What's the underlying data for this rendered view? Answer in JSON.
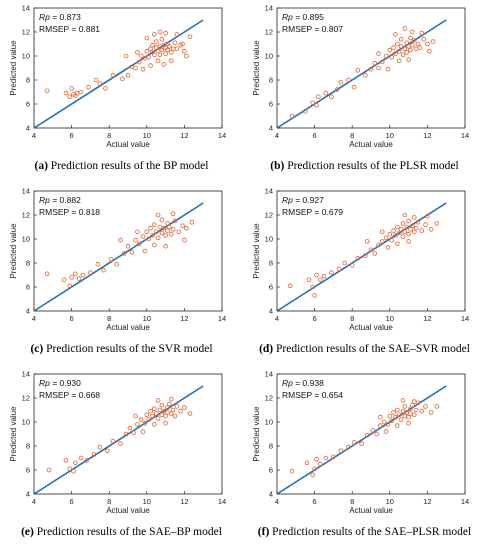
{
  "figure": {
    "panels": [
      {
        "label": "(a)",
        "caption": "Prediction results of the BP model"
      },
      {
        "label": "(b)",
        "caption": "Prediction results of the PLSR model"
      },
      {
        "label": "(c)",
        "caption": "Prediction results of the SVR model"
      },
      {
        "label": "(d)",
        "caption": "Prediction results of the SAE–SVR model"
      },
      {
        "label": "(e)",
        "caption": "Prediction results of the SAE–BP model"
      },
      {
        "label": "(f)",
        "caption": "Prediction results of the SAE–PLSR model"
      }
    ]
  },
  "colors": {
    "points": "#e8622a",
    "line": "#1f6fb5",
    "axis": "#222222"
  },
  "chart_data": [
    {
      "type": "scatter",
      "xlabel": "Actual value",
      "ylabel": "Predicted value",
      "xlim": [
        4,
        14
      ],
      "ylim": [
        4,
        14
      ],
      "xticks": [
        4,
        6,
        8,
        10,
        12,
        14
      ],
      "yticks": [
        4,
        6,
        8,
        10,
        12,
        14
      ],
      "stats": {
        "rp_label": "Rp",
        "rp_value": "= 0.873",
        "rmsep_text": "RMSEP = 0.881"
      },
      "fit_line": [
        [
          4,
          4
        ],
        [
          13,
          13
        ]
      ],
      "points": [
        [
          4.7,
          7.1
        ],
        [
          5.7,
          6.9
        ],
        [
          5.9,
          6.6
        ],
        [
          6.0,
          7.3
        ],
        [
          6.1,
          6.8
        ],
        [
          6.2,
          6.7
        ],
        [
          6.3,
          6.9
        ],
        [
          6.5,
          7.0
        ],
        [
          6.9,
          7.4
        ],
        [
          7.3,
          8.0
        ],
        [
          7.5,
          7.7
        ],
        [
          7.8,
          7.3
        ],
        [
          8.2,
          8.4
        ],
        [
          8.7,
          8.1
        ],
        [
          9.0,
          8.4
        ],
        [
          9.2,
          9.1
        ],
        [
          9.4,
          9.0
        ],
        [
          9.6,
          9.5
        ],
        [
          9.7,
          10.0
        ],
        [
          9.9,
          9.8
        ],
        [
          10.0,
          10.4
        ],
        [
          10.1,
          9.9
        ],
        [
          10.2,
          10.6
        ],
        [
          10.3,
          10.3
        ],
        [
          10.3,
          10.9
        ],
        [
          10.4,
          10.1
        ],
        [
          10.5,
          10.7
        ],
        [
          10.5,
          11.2
        ],
        [
          10.6,
          10.4
        ],
        [
          10.7,
          10.8
        ],
        [
          10.7,
          10.1
        ],
        [
          10.8,
          10.5
        ],
        [
          10.8,
          11.4
        ],
        [
          10.9,
          10.9
        ],
        [
          11.0,
          10.2
        ],
        [
          11.0,
          10.7
        ],
        [
          11.1,
          11.0
        ],
        [
          11.1,
          10.5
        ],
        [
          11.2,
          10.8
        ],
        [
          11.3,
          10.3
        ],
        [
          11.4,
          10.6
        ],
        [
          11.5,
          11.1
        ],
        [
          11.6,
          10.6
        ],
        [
          11.8,
          10.9
        ],
        [
          12.0,
          10.4
        ],
        [
          12.3,
          11.6
        ],
        [
          10.2,
          9.2
        ],
        [
          10.6,
          9.6
        ],
        [
          11.3,
          9.6
        ],
        [
          10.9,
          9.3
        ],
        [
          9.8,
          8.9
        ],
        [
          10.4,
          11.8
        ],
        [
          11.0,
          11.9
        ],
        [
          11.6,
          11.8
        ],
        [
          10.0,
          11.5
        ],
        [
          9.5,
          10.3
        ],
        [
          8.9,
          10.0
        ],
        [
          11.9,
          11.0
        ],
        [
          12.1,
          10.0
        ],
        [
          10.7,
          12.0
        ]
      ]
    },
    {
      "type": "scatter",
      "xlabel": "Actual value",
      "ylabel": "Predicted value",
      "xlim": [
        4,
        14
      ],
      "ylim": [
        4,
        14
      ],
      "xticks": [
        4,
        6,
        8,
        10,
        12,
        14
      ],
      "yticks": [
        4,
        6,
        8,
        10,
        12,
        14
      ],
      "stats": {
        "rp_label": "Rp",
        "rp_value": "= 0.895",
        "rmsep_text": "RMSEP = 0.807"
      },
      "fit_line": [
        [
          4,
          4
        ],
        [
          13,
          13
        ]
      ],
      "points": [
        [
          4.8,
          5.0
        ],
        [
          5.5,
          5.4
        ],
        [
          5.9,
          6.1
        ],
        [
          6.1,
          5.9
        ],
        [
          6.2,
          6.6
        ],
        [
          6.6,
          6.9
        ],
        [
          6.9,
          6.6
        ],
        [
          7.2,
          7.2
        ],
        [
          7.4,
          7.8
        ],
        [
          7.8,
          8.0
        ],
        [
          8.1,
          7.4
        ],
        [
          8.3,
          8.8
        ],
        [
          8.7,
          8.4
        ],
        [
          9.0,
          8.9
        ],
        [
          9.2,
          9.4
        ],
        [
          9.4,
          9.0
        ],
        [
          9.6,
          9.5
        ],
        [
          9.8,
          10.0
        ],
        [
          10.0,
          10.5
        ],
        [
          10.1,
          9.9
        ],
        [
          10.2,
          10.7
        ],
        [
          10.3,
          10.2
        ],
        [
          10.4,
          11.0
        ],
        [
          10.5,
          10.4
        ],
        [
          10.6,
          10.8
        ],
        [
          10.6,
          11.4
        ],
        [
          10.7,
          10.1
        ],
        [
          10.8,
          10.6
        ],
        [
          10.9,
          11.1
        ],
        [
          10.9,
          10.3
        ],
        [
          11.0,
          10.8
        ],
        [
          11.1,
          11.5
        ],
        [
          11.1,
          10.5
        ],
        [
          11.2,
          10.9
        ],
        [
          11.3,
          11.3
        ],
        [
          11.4,
          10.6
        ],
        [
          11.5,
          11.0
        ],
        [
          11.6,
          10.7
        ],
        [
          11.8,
          11.4
        ],
        [
          12.0,
          11.0
        ],
        [
          12.3,
          11.2
        ],
        [
          10.5,
          9.6
        ],
        [
          11.0,
          9.7
        ],
        [
          9.9,
          8.9
        ],
        [
          10.3,
          11.8
        ],
        [
          11.2,
          12.0
        ],
        [
          10.8,
          12.3
        ],
        [
          9.4,
          10.2
        ],
        [
          11.7,
          11.9
        ],
        [
          12.1,
          10.4
        ]
      ]
    },
    {
      "type": "scatter",
      "xlabel": "Actual value",
      "ylabel": "Predicted value",
      "xlim": [
        4,
        14
      ],
      "ylim": [
        4,
        14
      ],
      "xticks": [
        4,
        6,
        8,
        10,
        12,
        14
      ],
      "yticks": [
        4,
        6,
        8,
        10,
        12,
        14
      ],
      "stats": {
        "rp_label": "Rp",
        "rp_value": "= 0.882",
        "rmsep_text": "RMSEP = 0.818"
      },
      "fit_line": [
        [
          4,
          4
        ],
        [
          13,
          13
        ]
      ],
      "points": [
        [
          4.7,
          7.1
        ],
        [
          5.6,
          6.6
        ],
        [
          5.9,
          6.1
        ],
        [
          6.0,
          6.8
        ],
        [
          6.2,
          7.1
        ],
        [
          6.4,
          6.7
        ],
        [
          6.6,
          7.0
        ],
        [
          7.0,
          7.2
        ],
        [
          7.4,
          7.9
        ],
        [
          7.7,
          7.4
        ],
        [
          8.1,
          8.3
        ],
        [
          8.4,
          7.9
        ],
        [
          8.8,
          8.8
        ],
        [
          9.0,
          9.4
        ],
        [
          9.2,
          8.9
        ],
        [
          9.4,
          9.9
        ],
        [
          9.6,
          9.6
        ],
        [
          9.8,
          10.2
        ],
        [
          10.0,
          10.6
        ],
        [
          10.1,
          10.0
        ],
        [
          10.2,
          10.9
        ],
        [
          10.3,
          10.3
        ],
        [
          10.4,
          11.2
        ],
        [
          10.5,
          10.6
        ],
        [
          10.6,
          10.1
        ],
        [
          10.7,
          11.0
        ],
        [
          10.8,
          10.5
        ],
        [
          10.8,
          11.6
        ],
        [
          10.9,
          10.9
        ],
        [
          11.0,
          10.3
        ],
        [
          11.1,
          11.3
        ],
        [
          11.1,
          10.7
        ],
        [
          11.2,
          11.0
        ],
        [
          11.3,
          10.4
        ],
        [
          11.4,
          10.8
        ],
        [
          11.5,
          11.5
        ],
        [
          11.7,
          10.6
        ],
        [
          11.9,
          11.1
        ],
        [
          12.1,
          10.9
        ],
        [
          12.4,
          11.4
        ],
        [
          10.4,
          9.5
        ],
        [
          11.0,
          9.4
        ],
        [
          9.9,
          9.0
        ],
        [
          10.6,
          12.0
        ],
        [
          11.4,
          12.1
        ],
        [
          9.5,
          10.6
        ],
        [
          8.6,
          9.9
        ],
        [
          12.0,
          9.9
        ]
      ]
    },
    {
      "type": "scatter",
      "xlabel": "Actual value",
      "ylabel": "Predicted value",
      "xlim": [
        4,
        14
      ],
      "ylim": [
        4,
        14
      ],
      "xticks": [
        4,
        6,
        8,
        10,
        12,
        14
      ],
      "yticks": [
        4,
        6,
        8,
        10,
        12,
        14
      ],
      "stats": {
        "rp_label": "Rp",
        "rp_value": "= 0.927",
        "rmsep_text": "RMSEP = 0.679"
      },
      "fit_line": [
        [
          4,
          4
        ],
        [
          13,
          13
        ]
      ],
      "points": [
        [
          4.7,
          6.1
        ],
        [
          5.7,
          6.6
        ],
        [
          5.9,
          6.0
        ],
        [
          6.0,
          5.3
        ],
        [
          6.1,
          7.0
        ],
        [
          6.3,
          6.6
        ],
        [
          6.5,
          6.9
        ],
        [
          6.9,
          7.2
        ],
        [
          7.3,
          7.5
        ],
        [
          7.6,
          8.0
        ],
        [
          8.0,
          7.8
        ],
        [
          8.3,
          8.4
        ],
        [
          8.7,
          8.6
        ],
        [
          9.0,
          9.1
        ],
        [
          9.2,
          8.8
        ],
        [
          9.4,
          9.5
        ],
        [
          9.6,
          9.8
        ],
        [
          9.8,
          10.1
        ],
        [
          10.0,
          10.4
        ],
        [
          10.1,
          9.9
        ],
        [
          10.2,
          10.7
        ],
        [
          10.3,
          10.3
        ],
        [
          10.4,
          11.0
        ],
        [
          10.5,
          10.5
        ],
        [
          10.6,
          10.8
        ],
        [
          10.7,
          11.3
        ],
        [
          10.7,
          10.2
        ],
        [
          10.8,
          10.6
        ],
        [
          10.9,
          11.0
        ],
        [
          11.0,
          10.4
        ],
        [
          11.0,
          11.5
        ],
        [
          11.1,
          10.8
        ],
        [
          11.2,
          11.1
        ],
        [
          11.3,
          10.6
        ],
        [
          11.4,
          10.9
        ],
        [
          11.5,
          11.4
        ],
        [
          11.7,
          10.7
        ],
        [
          11.9,
          11.2
        ],
        [
          12.2,
          10.8
        ],
        [
          12.5,
          11.3
        ],
        [
          10.4,
          9.6
        ],
        [
          11.0,
          9.8
        ],
        [
          9.9,
          9.3
        ],
        [
          10.8,
          12.0
        ],
        [
          11.3,
          11.8
        ],
        [
          9.6,
          10.6
        ],
        [
          8.8,
          9.8
        ],
        [
          12.0,
          11.9
        ]
      ]
    },
    {
      "type": "scatter",
      "xlabel": "Actual value",
      "ylabel": "Predicted value",
      "xlim": [
        4,
        14
      ],
      "ylim": [
        4,
        14
      ],
      "xticks": [
        4,
        6,
        8,
        10,
        12,
        14
      ],
      "yticks": [
        4,
        6,
        8,
        10,
        12,
        14
      ],
      "stats": {
        "rp_label": "Rp",
        "rp_value": "= 0.930",
        "rmsep_text": "RMSEP = 0.668"
      },
      "fit_line": [
        [
          4,
          4
        ],
        [
          13,
          13
        ]
      ],
      "points": [
        [
          4.8,
          6.0
        ],
        [
          5.7,
          6.8
        ],
        [
          5.9,
          6.1
        ],
        [
          6.1,
          5.9
        ],
        [
          6.2,
          6.6
        ],
        [
          6.5,
          7.0
        ],
        [
          6.8,
          6.8
        ],
        [
          7.2,
          7.3
        ],
        [
          7.5,
          7.9
        ],
        [
          7.9,
          7.6
        ],
        [
          8.2,
          8.4
        ],
        [
          8.6,
          8.2
        ],
        [
          8.9,
          9.0
        ],
        [
          9.1,
          9.5
        ],
        [
          9.3,
          9.1
        ],
        [
          9.5,
          9.8
        ],
        [
          9.7,
          10.2
        ],
        [
          9.9,
          9.9
        ],
        [
          10.0,
          10.6
        ],
        [
          10.1,
          10.2
        ],
        [
          10.2,
          10.9
        ],
        [
          10.3,
          10.5
        ],
        [
          10.4,
          11.1
        ],
        [
          10.5,
          10.7
        ],
        [
          10.6,
          10.3
        ],
        [
          10.7,
          11.0
        ],
        [
          10.8,
          10.6
        ],
        [
          10.8,
          11.4
        ],
        [
          10.9,
          10.9
        ],
        [
          11.0,
          10.5
        ],
        [
          11.1,
          11.2
        ],
        [
          11.1,
          10.8
        ],
        [
          11.2,
          11.5
        ],
        [
          11.3,
          10.7
        ],
        [
          11.4,
          11.0
        ],
        [
          11.5,
          10.5
        ],
        [
          11.6,
          11.3
        ],
        [
          11.8,
          10.9
        ],
        [
          12.0,
          11.2
        ],
        [
          12.3,
          10.7
        ],
        [
          10.4,
          9.8
        ],
        [
          11.0,
          9.9
        ],
        [
          9.8,
          9.2
        ],
        [
          10.6,
          11.8
        ],
        [
          11.3,
          11.9
        ],
        [
          9.4,
          10.5
        ]
      ]
    },
    {
      "type": "scatter",
      "xlabel": "Actual value",
      "ylabel": "Predicted value",
      "xlim": [
        4,
        14
      ],
      "ylim": [
        4,
        14
      ],
      "xticks": [
        4,
        6,
        8,
        10,
        12,
        14
      ],
      "yticks": [
        4,
        6,
        8,
        10,
        12,
        14
      ],
      "stats": {
        "rp_label": "Rp",
        "rp_value": "= 0.938",
        "rmsep_text": "RMSEP = 0.654"
      },
      "fit_line": [
        [
          4,
          4
        ],
        [
          13,
          13
        ]
      ],
      "points": [
        [
          4.8,
          5.9
        ],
        [
          5.6,
          6.6
        ],
        [
          5.9,
          5.6
        ],
        [
          6.0,
          6.1
        ],
        [
          6.1,
          6.9
        ],
        [
          6.3,
          6.5
        ],
        [
          6.6,
          7.0
        ],
        [
          7.0,
          7.1
        ],
        [
          7.4,
          7.6
        ],
        [
          7.8,
          7.9
        ],
        [
          8.1,
          8.3
        ],
        [
          8.5,
          8.2
        ],
        [
          8.8,
          8.9
        ],
        [
          9.1,
          9.3
        ],
        [
          9.3,
          9.0
        ],
        [
          9.5,
          9.7
        ],
        [
          9.7,
          10.0
        ],
        [
          9.9,
          9.8
        ],
        [
          10.0,
          10.5
        ],
        [
          10.1,
          10.1
        ],
        [
          10.2,
          10.8
        ],
        [
          10.3,
          10.4
        ],
        [
          10.4,
          11.0
        ],
        [
          10.5,
          10.6
        ],
        [
          10.6,
          10.2
        ],
        [
          10.7,
          10.9
        ],
        [
          10.8,
          10.5
        ],
        [
          10.8,
          11.3
        ],
        [
          10.9,
          10.8
        ],
        [
          11.0,
          10.4
        ],
        [
          11.1,
          11.1
        ],
        [
          11.1,
          10.7
        ],
        [
          11.2,
          11.4
        ],
        [
          11.3,
          10.6
        ],
        [
          11.4,
          11.0
        ],
        [
          11.5,
          11.6
        ],
        [
          11.7,
          10.9
        ],
        [
          11.9,
          11.3
        ],
        [
          12.2,
          10.8
        ],
        [
          12.5,
          11.3
        ],
        [
          10.4,
          9.7
        ],
        [
          11.0,
          9.9
        ],
        [
          9.8,
          9.2
        ],
        [
          10.7,
          11.8
        ],
        [
          11.3,
          11.7
        ],
        [
          9.5,
          10.4
        ]
      ]
    }
  ]
}
